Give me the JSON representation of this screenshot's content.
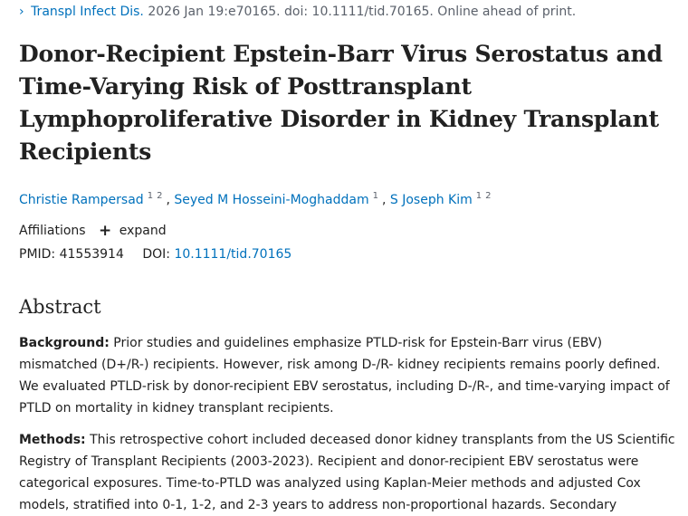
{
  "citation": {
    "journal": "Transpl Infect Dis.",
    "details": "2026 Jan 19:e70165. doi: 10.1111/tid.70165. Online ahead of print."
  },
  "title": "Donor-Recipient Epstein-Barr Virus Serostatus and Time-Varying Risk of Posttransplant Lymphoproliferative Disorder in Kidney Transplant Recipients",
  "authors": [
    {
      "name": "Christie Rampersad",
      "affils": [
        "1",
        "2"
      ]
    },
    {
      "name": "Seyed M Hosseini-Moghaddam",
      "affils": [
        "1"
      ]
    },
    {
      "name": "S Joseph Kim",
      "affils": [
        "1",
        "2"
      ]
    }
  ],
  "affiliations": {
    "label": "Affiliations",
    "expand_label": "expand"
  },
  "identifiers": {
    "pmid_label": "PMID:",
    "pmid": "41553914",
    "doi_label": "DOI:",
    "doi": "10.1111/tid.70165"
  },
  "abstract": {
    "heading": "Abstract",
    "sections": [
      {
        "label": "Background:",
        "text": "Prior studies and guidelines emphasize PTLD-risk for Epstein-Barr virus (EBV) mismatched (D+/R-) recipients. However, risk among D-/R- kidney recipients remains poorly defined. We evaluated PTLD-risk by donor-recipient EBV serostatus, including D-/R-, and time-varying impact of PTLD on mortality in kidney transplant recipients."
      },
      {
        "label": "Methods:",
        "text": "This retrospective cohort included deceased donor kidney transplants from the US Scientific Registry of Transplant Recipients (2003-2023). Recipient and donor-recipient EBV serostatus were categorical exposures. Time-to-PTLD was analyzed using Kaplan-Meier methods and adjusted Cox models, stratified into 0-1, 1-2, and 2-3 years to address non-proportional hazards. Secondary"
      }
    ]
  }
}
